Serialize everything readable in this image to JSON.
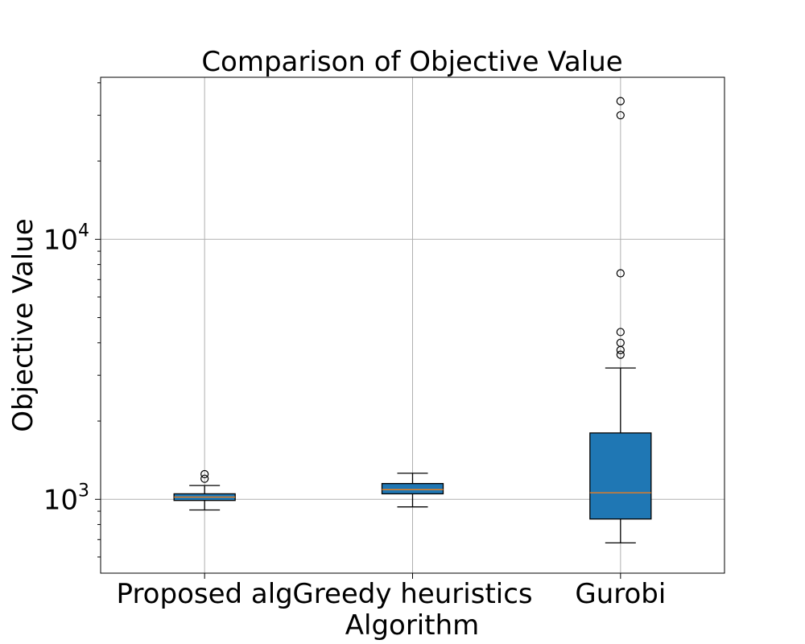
{
  "chart_data": {
    "type": "box",
    "title": "Comparison of Objective Value",
    "xlabel": "Algorithm",
    "ylabel": "Objective Value",
    "yscale": "log",
    "ylim": [
      520,
      42000
    ],
    "y_ticks": [
      {
        "value": 1000,
        "base": "10",
        "exp": "3"
      },
      {
        "value": 10000,
        "base": "10",
        "exp": "4"
      }
    ],
    "grid": true,
    "categories": [
      "Proposed alg",
      "Greedy heuristics",
      "Gurobi"
    ],
    "box_color": "#1f77b4",
    "median_color": "#ff7f0e",
    "boxes": [
      {
        "category": "Proposed alg",
        "whisker_low": 910,
        "q1": 990,
        "median": 1020,
        "q3": 1050,
        "whisker_high": 1130,
        "outliers": [
          1200,
          1250
        ]
      },
      {
        "category": "Greedy heuristics",
        "whisker_low": 935,
        "q1": 1050,
        "median": 1090,
        "q3": 1150,
        "whisker_high": 1260,
        "outliers": []
      },
      {
        "category": "Gurobi",
        "whisker_low": 680,
        "q1": 840,
        "median": 1060,
        "q3": 1800,
        "whisker_high": 3200,
        "outliers": [
          3600,
          3750,
          4000,
          4400,
          7400,
          30000,
          34000
        ]
      }
    ]
  }
}
